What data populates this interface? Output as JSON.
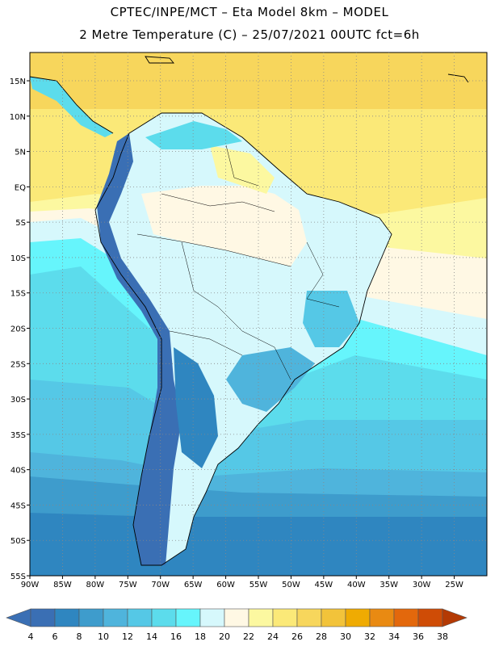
{
  "header": {
    "line1": "CPTEC/INPE/MCT –  Eta Model 8km – MODEL",
    "line2": "2 Metre Temperature (C) – 25/07/2021 00UTC fct=6h"
  },
  "map": {
    "lon_range": [
      -90,
      -20
    ],
    "lat_range": [
      -55,
      19
    ],
    "lon_ticks": [
      {
        "value": -90,
        "label": "90W"
      },
      {
        "value": -85,
        "label": "85W"
      },
      {
        "value": -80,
        "label": "80W"
      },
      {
        "value": -75,
        "label": "75W"
      },
      {
        "value": -70,
        "label": "70W"
      },
      {
        "value": -65,
        "label": "65W"
      },
      {
        "value": -60,
        "label": "60W"
      },
      {
        "value": -55,
        "label": "55W"
      },
      {
        "value": -50,
        "label": "50W"
      },
      {
        "value": -45,
        "label": "45W"
      },
      {
        "value": -40,
        "label": "40W"
      },
      {
        "value": -35,
        "label": "35W"
      },
      {
        "value": -30,
        "label": "30W"
      },
      {
        "value": -25,
        "label": "25W"
      }
    ],
    "lat_ticks": [
      {
        "value": 15,
        "label": "15N"
      },
      {
        "value": 10,
        "label": "10N"
      },
      {
        "value": 5,
        "label": "5N"
      },
      {
        "value": 0,
        "label": "EQ"
      },
      {
        "value": -5,
        "label": "5S"
      },
      {
        "value": -10,
        "label": "10S"
      },
      {
        "value": -15,
        "label": "15S"
      },
      {
        "value": -20,
        "label": "20S"
      },
      {
        "value": -25,
        "label": "25S"
      },
      {
        "value": -30,
        "label": "30S"
      },
      {
        "value": -35,
        "label": "35S"
      },
      {
        "value": -40,
        "label": "40S"
      },
      {
        "value": -45,
        "label": "45S"
      },
      {
        "value": -50,
        "label": "50S"
      },
      {
        "value": -55,
        "label": "55S"
      }
    ],
    "grid": "dotted"
  },
  "colorbar": {
    "labels": [
      "4",
      "6",
      "8",
      "10",
      "12",
      "14",
      "16",
      "18",
      "20",
      "22",
      "24",
      "26",
      "28",
      "30",
      "32",
      "34",
      "36",
      "38"
    ],
    "colors": [
      "#3a6fb4",
      "#2f86c0",
      "#3e9ccc",
      "#4fb4dc",
      "#55c8e6",
      "#5cdcec",
      "#66f5fc",
      "#d6f8fc",
      "#fff8e4",
      "#fcf8a0",
      "#fbe978",
      "#f7d65c",
      "#f2c33a",
      "#efab02",
      "#e98a12",
      "#e3680c",
      "#cf4c06",
      "#b43a04"
    ]
  }
}
